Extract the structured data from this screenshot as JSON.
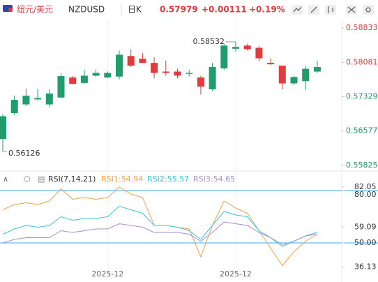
{
  "header": {
    "pair_name": "纽元/美元",
    "symbol": "NZDUSD",
    "period": "日K",
    "price": "0.57979",
    "change": "+0.00111",
    "change_pct": "+0.19%"
  },
  "chart_data": [
    {
      "type": "candlestick",
      "up_color": "#1f9d6b",
      "down_color": "#e33b3b",
      "categories": [
        null,
        null,
        null,
        null,
        null,
        null,
        null,
        null,
        null,
        "2025-12",
        null,
        null,
        null,
        null,
        null,
        null,
        null,
        null,
        null,
        null,
        "2025-12",
        null,
        null,
        null,
        null,
        null,
        null,
        null
      ],
      "open": [
        0.564,
        0.5697,
        0.5716,
        0.5727,
        0.5716,
        0.5731,
        0.5775,
        0.5763,
        0.5779,
        0.5775,
        0.5777,
        0.5822,
        0.5816,
        0.5807,
        0.5788,
        0.5788,
        0.5783,
        0.5775,
        0.5749,
        0.5795,
        0.5838,
        0.5845,
        0.584,
        0.5807,
        0.5801,
        0.5762,
        0.5767,
        0.5788
      ],
      "high": [
        0.5695,
        0.5735,
        0.575,
        0.575,
        0.5749,
        0.5785,
        0.5778,
        0.5792,
        0.5792,
        0.5788,
        0.5834,
        0.5837,
        0.5828,
        0.5819,
        0.5812,
        0.5794,
        0.5792,
        0.5779,
        0.5807,
        0.5849,
        0.58532,
        0.5849,
        0.5845,
        0.5817,
        0.5801,
        0.5778,
        0.58,
        0.5812
      ],
      "low": [
        0.56126,
        0.5693,
        0.5712,
        0.5724,
        0.571,
        0.573,
        0.576,
        0.5761,
        0.5777,
        0.5773,
        0.5771,
        0.5798,
        0.5807,
        0.5773,
        0.5779,
        0.5773,
        0.5777,
        0.5738,
        0.5746,
        0.5792,
        0.5832,
        0.5834,
        0.581,
        0.5802,
        0.5749,
        0.5758,
        0.5748,
        0.5785
      ],
      "close": [
        0.569,
        0.5726,
        0.5735,
        0.573,
        0.574,
        0.5778,
        0.5761,
        0.5779,
        0.5785,
        0.5785,
        0.5825,
        0.5801,
        0.5807,
        0.5785,
        0.5785,
        0.5779,
        0.5785,
        0.5755,
        0.5798,
        0.5845,
        0.5842,
        0.5837,
        0.5817,
        0.5804,
        0.5762,
        0.5776,
        0.5794,
        0.57979
      ],
      "annotations": [
        "0.58532",
        "0.56126"
      ],
      "ylim": [
        0.557,
        0.5902
      ],
      "yticks": [
        0.58833,
        0.58081,
        0.57329,
        0.56577,
        0.55825
      ],
      "ytick_colors": [
        "#e33b3b",
        "#e33b3b",
        "#1f9d6b",
        "#1f9d6b",
        "#1f9d6b"
      ]
    },
    {
      "type": "line",
      "indicator": "RSI(7,14,21)",
      "series": [
        {
          "name": "RSI1:54.94",
          "color": "#f5a04a",
          "values": [
            69,
            72,
            73,
            72,
            74,
            81,
            75,
            76,
            75,
            76,
            82,
            78,
            76,
            60,
            60,
            59,
            58,
            42,
            60,
            74,
            70,
            67,
            57,
            47,
            37,
            45,
            51,
            55
          ]
        },
        {
          "name": "RSI2:55.57",
          "color": "#3cc3d6",
          "values": [
            55,
            58,
            60,
            59,
            60,
            65,
            63,
            64,
            64,
            65,
            71,
            69,
            67,
            60,
            60,
            59,
            57,
            52,
            60,
            68,
            66,
            65,
            57,
            53,
            48,
            51,
            54,
            56
          ]
        },
        {
          "name": "RSI3:54.65",
          "color": "#a48fd8",
          "values": [
            50,
            52,
            53,
            53,
            53,
            57,
            56,
            57,
            58,
            58,
            61,
            60,
            59,
            56,
            56,
            56,
            55,
            51,
            56,
            62,
            61,
            60,
            56,
            53,
            49,
            51,
            54,
            55
          ]
        }
      ],
      "ylim": [
        31.2,
        84.4
      ],
      "yticks": [
        82.05,
        {
          "value": 80,
          "label": "80.00"
        },
        59.09,
        {
          "value": 50,
          "label": "50.00"
        },
        36.13
      ],
      "levels": [
        80,
        50
      ],
      "level_color": "#3fa9f5"
    }
  ]
}
